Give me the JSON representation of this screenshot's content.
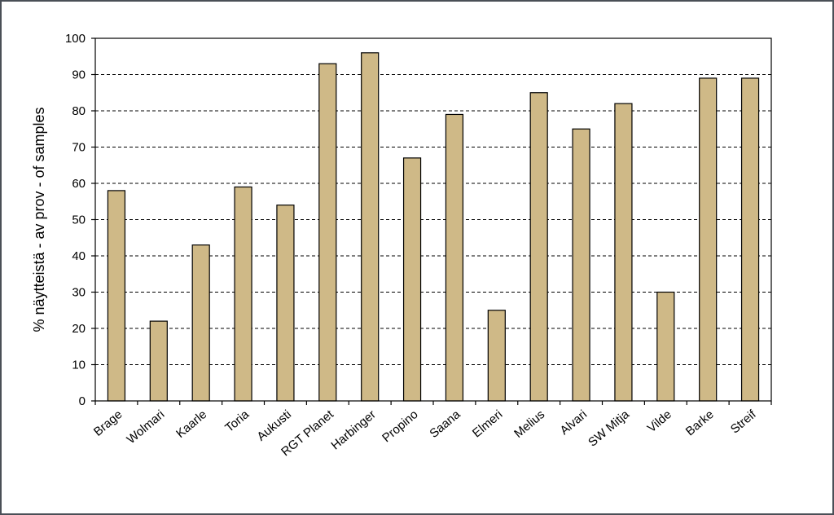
{
  "chart_data": {
    "type": "bar",
    "title": "",
    "xlabel": "",
    "ylabel": "% näytteistä - av prov - of samples",
    "ylim": [
      0,
      100
    ],
    "yticks": [
      0,
      10,
      20,
      30,
      40,
      50,
      60,
      70,
      80,
      90,
      100
    ],
    "grid": "horizontal dashed",
    "categories": [
      "Brage",
      "Wolmari",
      "Kaarle",
      "Toria",
      "Aukusti",
      "RGT Planet",
      "Harbinger",
      "Propino",
      "Saana",
      "Elmeri",
      "Melius",
      "Alvari",
      "SW Mitja",
      "Vilde",
      "Barke",
      "Streif"
    ],
    "values": [
      58,
      22,
      43,
      59,
      54,
      93,
      96,
      67,
      79,
      25,
      85,
      75,
      82,
      30,
      89,
      89
    ],
    "bar_color": "#cfb987",
    "bar_edge_color": "#000000"
  }
}
